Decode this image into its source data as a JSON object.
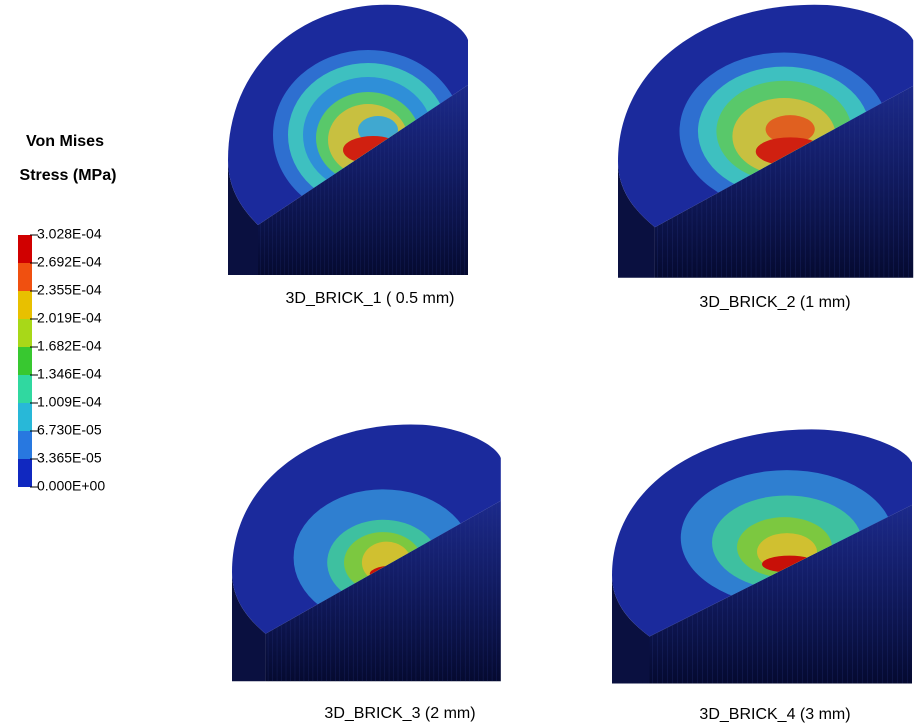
{
  "legend": {
    "title_line1": "Von Mises",
    "title_line2": "Stress (MPa)",
    "labels": [
      "3.028E-04",
      "2.692E-04",
      "2.355E-04",
      "2.019E-04",
      "1.682E-04",
      "1.346E-04",
      "1.009E-04",
      "6.730E-05",
      "3.365E-05",
      "0.000E+00"
    ]
  },
  "panels": [
    {
      "caption": "3D_BRICK_1  ( 0.5 mm)"
    },
    {
      "caption": "3D_BRICK_2  (1 mm)"
    },
    {
      "caption": "3D_BRICK_3 (2 mm)"
    },
    {
      "caption": "3D_BRICK_4 (3 mm)"
    }
  ]
}
